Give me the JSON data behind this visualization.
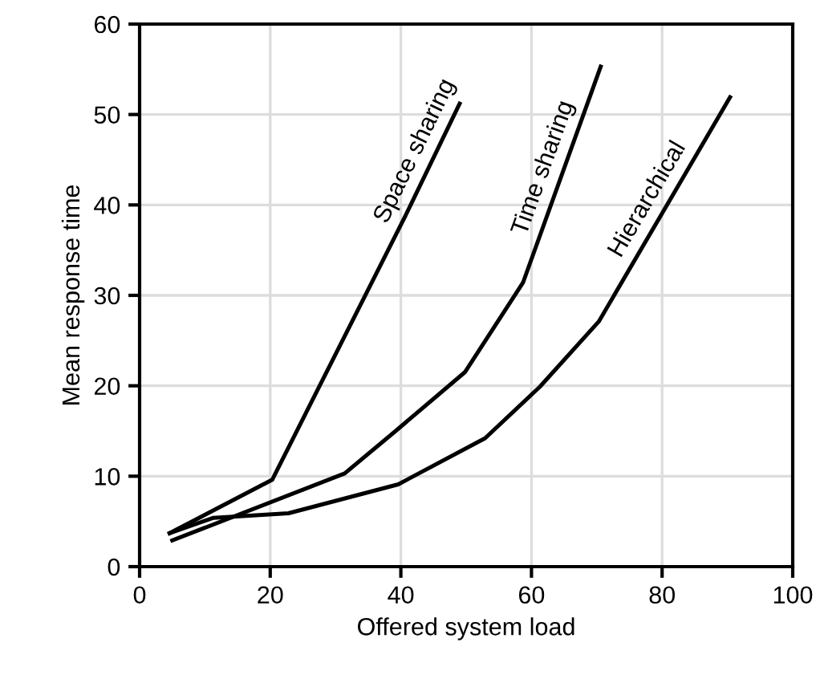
{
  "chart_data": {
    "type": "line",
    "xlabel": "Offered system load",
    "ylabel": "Mean response time",
    "xlim": [
      0,
      100
    ],
    "xticks": [
      0,
      20,
      40,
      60,
      80,
      100
    ],
    "ylim": [
      0,
      60
    ],
    "yticks": [
      0,
      10,
      20,
      30,
      40,
      50,
      60
    ],
    "grid": true,
    "legend": false,
    "marker": "none",
    "line_style": "solid",
    "series": [
      {
        "name": "Space sharing",
        "color": "#000000",
        "x": [
          4.6,
          20.3,
          40.7,
          49
        ],
        "values": [
          3.7,
          9.6,
          38.8,
          51.2
        ]
      },
      {
        "name": "Time sharing",
        "color": "#000000",
        "x": [
          5,
          31.4,
          39.2,
          49.8,
          58.7,
          70.6
        ],
        "values": [
          2.9,
          10.3,
          15,
          21.5,
          31.4,
          55.3
        ]
      },
      {
        "name": "Hierarchical",
        "color": "#000000",
        "x": [
          4.6,
          11.3,
          22.8,
          39.6,
          52.9,
          61.3,
          70.3,
          90.4
        ],
        "values": [
          3.7,
          5.4,
          5.9,
          9.1,
          14.2,
          19.9,
          27.1,
          51.9
        ]
      }
    ]
  }
}
